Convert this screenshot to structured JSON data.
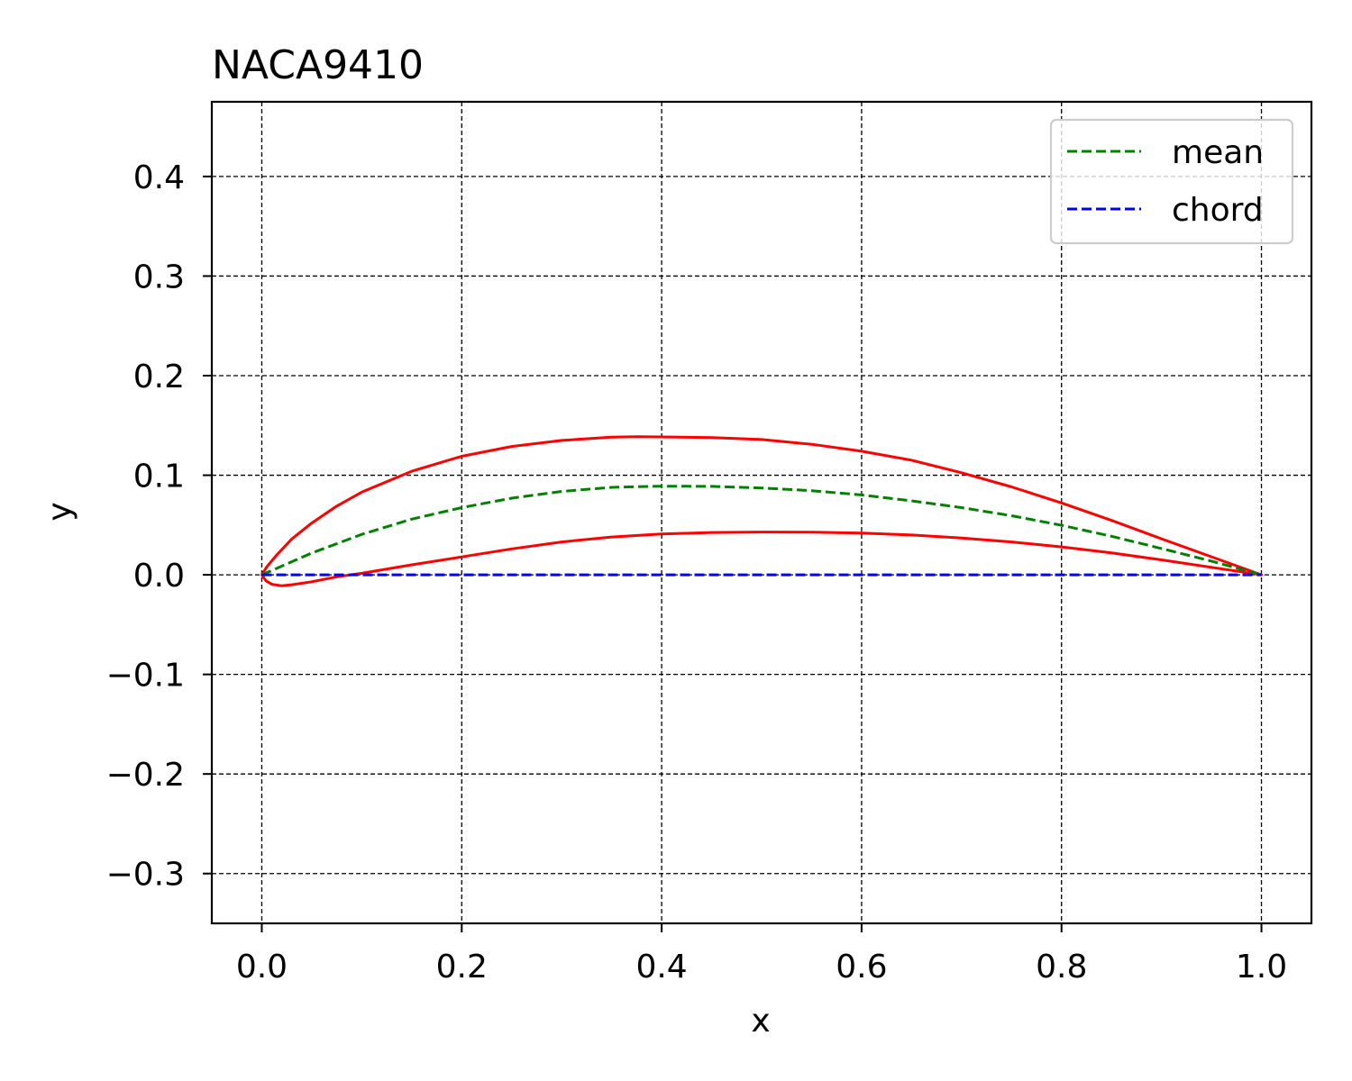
{
  "chart_data": {
    "type": "line",
    "title": "NACA9410",
    "xlabel": "x",
    "ylabel": "y",
    "xlim": [
      -0.05,
      1.05
    ],
    "ylim": [
      -0.35,
      0.475
    ],
    "xticks": [
      0.0,
      0.2,
      0.4,
      0.6,
      0.8,
      1.0
    ],
    "xtick_labels": [
      "0.0",
      "0.2",
      "0.4",
      "0.6",
      "0.8",
      "1.0"
    ],
    "yticks": [
      -0.3,
      -0.2,
      -0.1,
      0.0,
      0.1,
      0.2,
      0.3,
      0.4
    ],
    "ytick_labels": [
      "−0.3",
      "−0.2",
      "−0.1",
      "0.0",
      "0.1",
      "0.2",
      "0.3",
      "0.4"
    ],
    "grid": true,
    "legend_position": "top-right",
    "series": [
      {
        "name": "mean",
        "style": "dashed",
        "color": "#008000",
        "x": [
          0.0,
          0.05,
          0.1,
          0.15,
          0.2,
          0.25,
          0.3,
          0.35,
          0.4,
          0.45,
          0.5,
          0.55,
          0.6,
          0.65,
          0.7,
          0.75,
          0.8,
          0.85,
          0.9,
          0.95,
          1.0
        ],
        "y": [
          0.0,
          0.0219,
          0.0406,
          0.0559,
          0.0675,
          0.077,
          0.0838,
          0.0878,
          0.089,
          0.0888,
          0.0872,
          0.0845,
          0.0802,
          0.0743,
          0.0675,
          0.0593,
          0.0497,
          0.0387,
          0.0264,
          0.0137,
          0.0
        ]
      },
      {
        "name": "chord",
        "style": "dashed",
        "color": "#0000ff",
        "x": [
          0.0,
          1.0
        ],
        "y": [
          0.0,
          0.0
        ]
      },
      {
        "style": "solid",
        "color": "#ff0000",
        "x": [
          1.0,
          0.95,
          0.9,
          0.85,
          0.8,
          0.75,
          0.7,
          0.65,
          0.6,
          0.55,
          0.5,
          0.45,
          0.4,
          0.375,
          0.35,
          0.3,
          0.25,
          0.2,
          0.15,
          0.1,
          0.075,
          0.05,
          0.03,
          0.015,
          0.005,
          0.0,
          0.004,
          0.01,
          0.02,
          0.03,
          0.05,
          0.075,
          0.1,
          0.15,
          0.2,
          0.25,
          0.3,
          0.35,
          0.4,
          0.45,
          0.5,
          0.55,
          0.6,
          0.65,
          0.7,
          0.75,
          0.8,
          0.85,
          0.9,
          0.95,
          1.0
        ],
        "y": [
          0.0,
          0.0181,
          0.0362,
          0.0546,
          0.0722,
          0.0883,
          0.1025,
          0.1151,
          0.1241,
          0.1311,
          0.1359,
          0.1378,
          0.1385,
          0.1387,
          0.1382,
          0.135,
          0.1289,
          0.119,
          0.104,
          0.083,
          0.069,
          0.052,
          0.036,
          0.02,
          0.008,
          0.0,
          -0.006,
          -0.0095,
          -0.011,
          -0.01,
          -0.007,
          -0.002,
          0.0015,
          0.01,
          0.018,
          0.026,
          0.033,
          0.038,
          0.041,
          0.0425,
          0.043,
          0.0428,
          0.042,
          0.04,
          0.037,
          0.033,
          0.028,
          0.022,
          0.015,
          0.0075,
          0.0
        ]
      }
    ],
    "legend": [
      {
        "label": "mean",
        "color": "#008000"
      },
      {
        "label": "chord",
        "color": "#0000ff"
      }
    ]
  }
}
